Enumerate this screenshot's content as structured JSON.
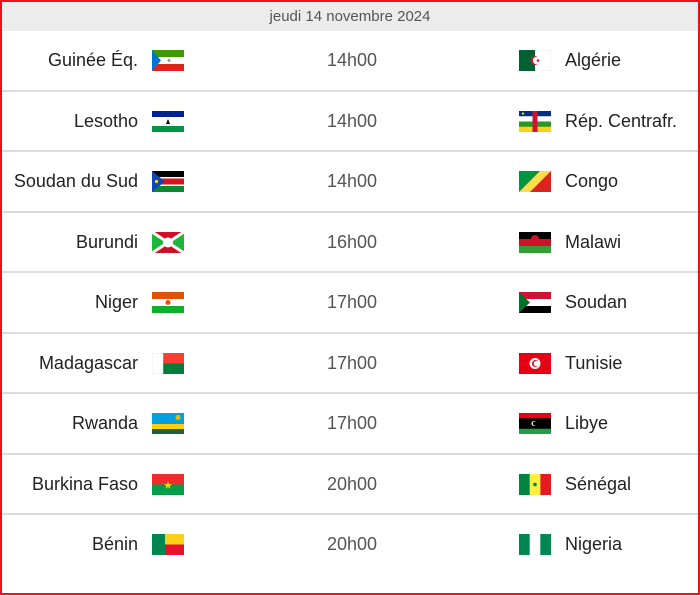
{
  "header": {
    "date": "jeudi 14 novembre 2024"
  },
  "accent_color": "#e8141b",
  "matches": [
    {
      "home": "Guinée Éq.",
      "home_flag": "gq",
      "time": "14h00",
      "away": "Algérie",
      "away_flag": "dz"
    },
    {
      "home": "Lesotho",
      "home_flag": "ls",
      "time": "14h00",
      "away": "Rép. Centrafr.",
      "away_flag": "cf"
    },
    {
      "home": "Soudan du Sud",
      "home_flag": "ss",
      "time": "14h00",
      "away": "Congo",
      "away_flag": "cg"
    },
    {
      "home": "Burundi",
      "home_flag": "bi",
      "time": "16h00",
      "away": "Malawi",
      "away_flag": "mw"
    },
    {
      "home": "Niger",
      "home_flag": "ne",
      "time": "17h00",
      "away": "Soudan",
      "away_flag": "sd"
    },
    {
      "home": "Madagascar",
      "home_flag": "mg",
      "time": "17h00",
      "away": "Tunisie",
      "away_flag": "tn"
    },
    {
      "home": "Rwanda",
      "home_flag": "rw",
      "time": "17h00",
      "away": "Libye",
      "away_flag": "ly"
    },
    {
      "home": "Burkina Faso",
      "home_flag": "bf",
      "time": "20h00",
      "away": "Sénégal",
      "away_flag": "sn"
    },
    {
      "home": "Bénin",
      "home_flag": "bj",
      "time": "20h00",
      "away": "Nigeria",
      "away_flag": "ng"
    }
  ]
}
